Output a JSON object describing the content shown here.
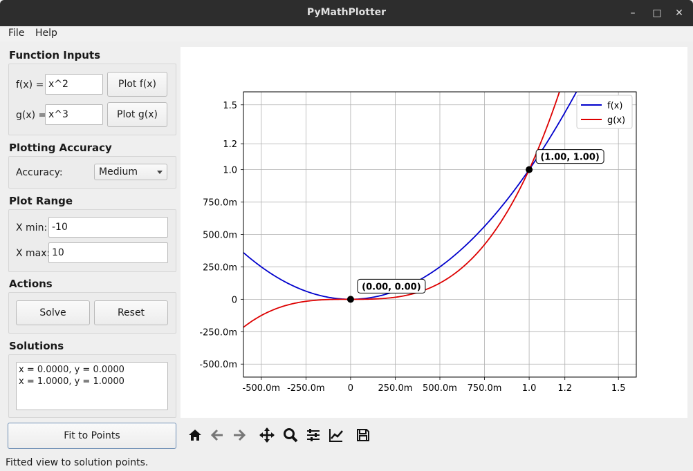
{
  "window": {
    "title": "PyMathPlotter",
    "controls": {
      "minimize": "–",
      "maximize": "□",
      "close": "✕"
    }
  },
  "menubar": {
    "file": "File",
    "help": "Help"
  },
  "function_inputs": {
    "title": "Function Inputs",
    "f_label": "f(x) =",
    "f_value": "x^2",
    "f_button": "Plot f(x)",
    "g_label": "g(x) =",
    "g_value": "x^3",
    "g_button": "Plot g(x)"
  },
  "plotting_accuracy": {
    "title": "Plotting Accuracy",
    "label": "Accuracy:",
    "selected": "Medium"
  },
  "plot_range": {
    "title": "Plot Range",
    "xmin_label": "X min:",
    "xmin_value": "-10",
    "xmax_label": "X max:",
    "xmax_value": "10"
  },
  "actions": {
    "title": "Actions",
    "solve": "Solve",
    "reset": "Reset"
  },
  "solutions": {
    "title": "Solutions",
    "lines": [
      "x = 0.0000, y = 0.0000",
      "x = 1.0000, y = 1.0000"
    ]
  },
  "fit_button": "Fit to Points",
  "toolbar": {
    "icons": [
      "home-icon",
      "back-arrow-icon",
      "forward-arrow-icon",
      "pan-icon",
      "zoom-icon",
      "configure-subplots-icon",
      "edit-axis-icon",
      "save-icon"
    ]
  },
  "status": "Fitted view to solution points.",
  "colors": {
    "f": "#0000cc",
    "g": "#dd0000",
    "focus_border": "#6e8fb5"
  },
  "chart_data": {
    "type": "line",
    "title": "",
    "xlabel": "",
    "ylabel": "",
    "xlim": [
      -0.6,
      1.6
    ],
    "ylim": [
      -0.6,
      1.6
    ],
    "xticks": [
      -0.5,
      -0.25,
      0,
      0.25,
      0.5,
      0.75,
      1.0,
      1.2,
      1.5
    ],
    "xtick_labels": [
      "-500.0m",
      "-250.0m",
      "0",
      "250.0m",
      "500.0m",
      "750.0m",
      "1.0",
      "1.2",
      "1.5"
    ],
    "yticks": [
      -0.5,
      -0.25,
      0,
      0.25,
      0.5,
      0.75,
      1.0,
      1.2,
      1.5
    ],
    "ytick_labels": [
      "-500.0m",
      "-250.0m",
      "0",
      "250.0m",
      "500.0m",
      "750.0m",
      "1.0",
      "1.2",
      "1.5"
    ],
    "grid": true,
    "legend": "top-right",
    "series": [
      {
        "name": "f(x)",
        "expr": "x^2",
        "color": "#0000cc"
      },
      {
        "name": "g(x)",
        "expr": "x^3",
        "color": "#dd0000"
      }
    ],
    "points": [
      {
        "x": 0,
        "y": 0,
        "label": "(0.00, 0.00)"
      },
      {
        "x": 1,
        "y": 1,
        "label": "(1.00, 1.00)"
      }
    ]
  }
}
